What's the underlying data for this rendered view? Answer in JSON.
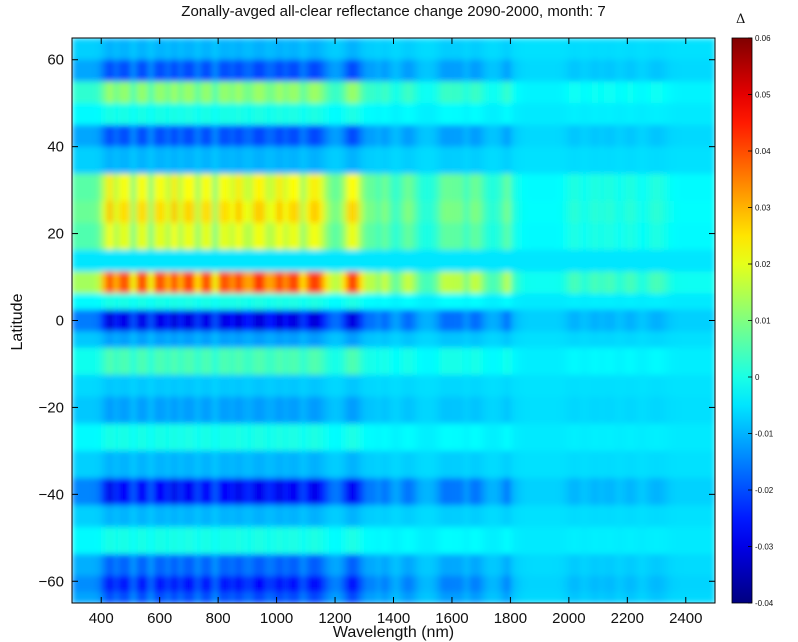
{
  "chart_data": {
    "type": "heatmap",
    "title": "Zonally-avged all-clear reflectance change 2090-2000, month: 7",
    "xlabel": "Wavelength (nm)",
    "ylabel": "Latitude",
    "xlim": [
      300,
      2500
    ],
    "ylim": [
      -65,
      65
    ],
    "x_ticks": [
      "400",
      "600",
      "800",
      "1000",
      "1200",
      "1400",
      "1600",
      "1800",
      "2000",
      "2200",
      "2400"
    ],
    "y_ticks": [
      "60",
      "40",
      "20",
      "0",
      "-20",
      "-40",
      "-60"
    ],
    "colorbar": {
      "symbol": "Δ",
      "range": [
        -0.04,
        0.06
      ],
      "ticks": [
        "0.06",
        "0.05",
        "0.04",
        "0.03",
        "0.02",
        "0.01",
        "0",
        "-0.01",
        "-0.02",
        "-0.03",
        "-0.04"
      ],
      "colormap": "jet"
    },
    "background_value": -0.005,
    "wavelength_bands": [
      {
        "center": 430,
        "width": 25
      },
      {
        "center": 480,
        "width": 25
      },
      {
        "center": 540,
        "width": 25
      },
      {
        "center": 600,
        "width": 25
      },
      {
        "center": 650,
        "width": 25
      },
      {
        "center": 700,
        "width": 30
      },
      {
        "center": 760,
        "width": 25
      },
      {
        "center": 820,
        "width": 25
      },
      {
        "center": 870,
        "width": 30
      },
      {
        "center": 940,
        "width": 40
      },
      {
        "center": 1010,
        "width": 30
      },
      {
        "center": 1060,
        "width": 30
      },
      {
        "center": 1130,
        "width": 40
      },
      {
        "center": 1260,
        "width": 30
      },
      {
        "center": 1370,
        "width": 25
      },
      {
        "center": 1450,
        "width": 30
      },
      {
        "center": 1580,
        "width": 30
      },
      {
        "center": 1620,
        "width": 25
      },
      {
        "center": 1680,
        "width": 30
      },
      {
        "center": 1800,
        "width": 30
      },
      {
        "center": 2020,
        "width": 30
      },
      {
        "center": 2090,
        "width": 30
      },
      {
        "center": 2140,
        "width": 30
      },
      {
        "center": 2210,
        "width": 30
      },
      {
        "center": 2300,
        "width": 40
      }
    ],
    "latitude_profile": [
      {
        "lat": 62,
        "value": -0.01
      },
      {
        "lat": 57,
        "value": -0.02
      },
      {
        "lat": 52,
        "value": 0.012
      },
      {
        "lat": 47,
        "value": 0.0
      },
      {
        "lat": 42,
        "value": -0.02
      },
      {
        "lat": 37,
        "value": -0.01
      },
      {
        "lat": 31,
        "value": 0.022
      },
      {
        "lat": 25,
        "value": 0.026
      },
      {
        "lat": 19,
        "value": 0.02
      },
      {
        "lat": 14,
        "value": -0.005
      },
      {
        "lat": 8,
        "value": 0.04
      },
      {
        "lat": 4,
        "value": 0.0
      },
      {
        "lat": 0,
        "value": -0.03
      },
      {
        "lat": -4,
        "value": -0.012
      },
      {
        "lat": -9,
        "value": 0.005
      },
      {
        "lat": -15,
        "value": -0.008
      },
      {
        "lat": -21,
        "value": -0.012
      },
      {
        "lat": -27,
        "value": 0.0
      },
      {
        "lat": -33,
        "value": -0.01
      },
      {
        "lat": -39,
        "value": -0.028
      },
      {
        "lat": -45,
        "value": -0.01
      },
      {
        "lat": -51,
        "value": 0.0
      },
      {
        "lat": -57,
        "value": -0.018
      },
      {
        "lat": -61,
        "value": -0.026
      },
      {
        "lat": -64,
        "value": -0.02
      }
    ]
  }
}
